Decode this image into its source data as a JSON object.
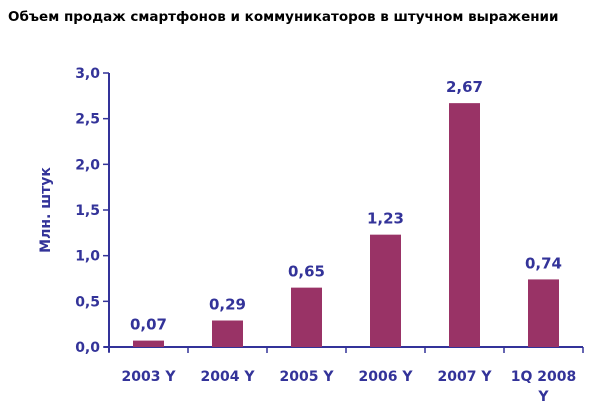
{
  "chart_data": {
    "type": "bar",
    "title": "Объем продаж смартфонов и коммуникаторов в штучном выражении",
    "ylabel": "Млн. штук",
    "xlabel": "",
    "categories": [
      "2003 Y",
      "2004 Y",
      "2005 Y",
      "2006 Y",
      "2007 Y",
      "1Q 2008 Y"
    ],
    "values": [
      0.07,
      0.29,
      0.65,
      1.23,
      2.67,
      0.74
    ],
    "value_labels": [
      "0,07",
      "0,29",
      "0,65",
      "1,23",
      "2,67",
      "0,74"
    ],
    "ylim": [
      0,
      3.0
    ],
    "yticks": [
      0,
      0.5,
      1.0,
      1.5,
      2.0,
      2.5,
      3.0
    ],
    "ytick_labels": [
      "0,0",
      "0,5",
      "1,0",
      "1,5",
      "2,0",
      "2,5",
      "3,0"
    ],
    "grid": false,
    "legend": "none",
    "colors": {
      "bar": "#993366",
      "axis": "#333399",
      "text": "#333399",
      "title": "#000000"
    }
  }
}
